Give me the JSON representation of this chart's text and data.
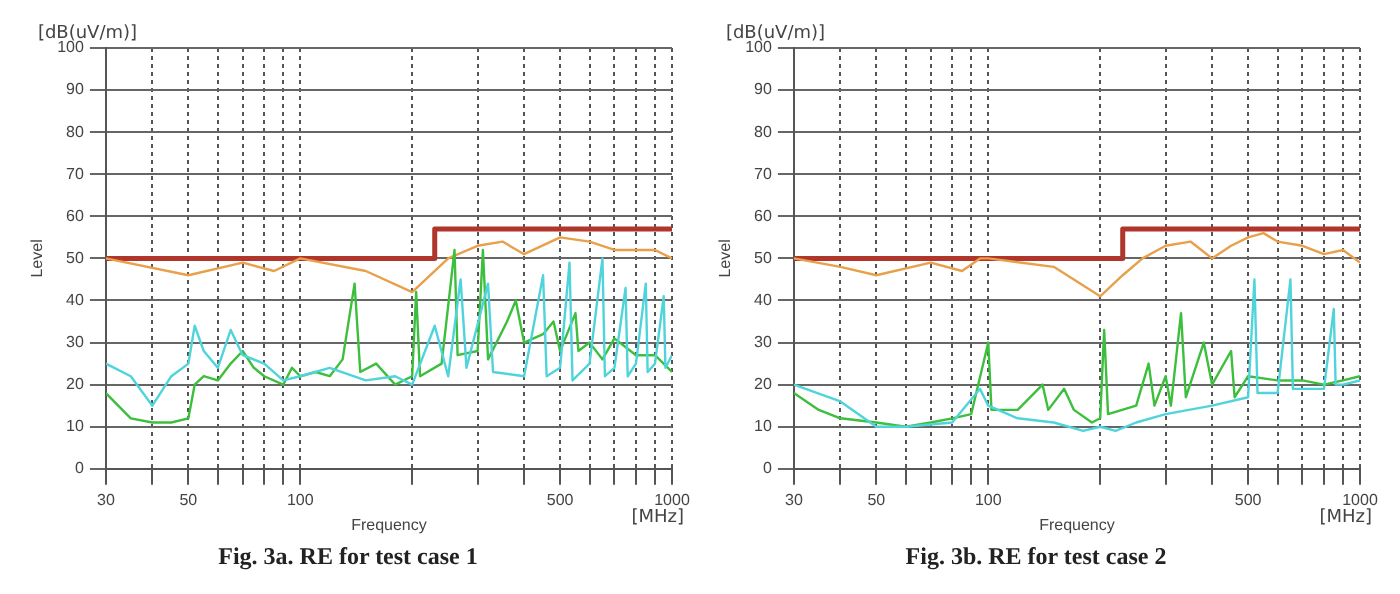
{
  "chart_data": [
    {
      "type": "line",
      "title": "Fig. 3a. RE for test case 1",
      "xlabel": "Frequency",
      "ylabel": "Level",
      "annotations": [
        "[dB(uV/m)]",
        "[MHz]"
      ],
      "log": "x",
      "grid": true,
      "marker": "none",
      "xlim": [
        30,
        1000
      ],
      "xticks": [
        30,
        {
          "value": 40,
          "label": null
        },
        50,
        {
          "value": 60,
          "label": null
        },
        {
          "value": 70,
          "label": null
        },
        {
          "value": 80,
          "label": null
        },
        {
          "value": 90,
          "label": null
        },
        100,
        {
          "value": 200,
          "label": null
        },
        {
          "value": 300,
          "label": null
        },
        {
          "value": 400,
          "label": null
        },
        500,
        {
          "value": 600,
          "label": null
        },
        {
          "value": 700,
          "label": null
        },
        {
          "value": 800,
          "label": null
        },
        {
          "value": 900,
          "label": null
        },
        1000
      ],
      "ylim": [
        0,
        100
      ],
      "yticks": [
        0,
        10,
        20,
        30,
        40,
        50,
        60,
        70,
        80,
        90,
        100
      ],
      "series": [
        {
          "type": "line",
          "color": "#4fd4dc",
          "x": [
            30,
            35,
            40,
            45,
            50,
            52,
            55,
            60,
            65,
            70,
            80,
            90,
            100,
            120,
            150,
            180,
            200,
            230,
            250,
            270,
            280,
            320,
            330,
            400,
            450,
            460,
            500,
            530,
            540,
            600,
            650,
            660,
            700,
            750,
            760,
            800,
            850,
            860,
            900,
            950,
            960,
            1000
          ],
          "values": [
            25,
            22,
            15,
            22,
            25,
            34,
            28,
            24,
            33,
            27,
            25,
            21,
            22,
            24,
            21,
            22,
            20,
            34,
            22,
            45,
            24,
            44,
            23,
            22,
            46,
            22,
            24,
            49,
            21,
            25,
            50,
            22,
            24,
            43,
            22,
            25,
            44,
            23,
            25,
            41,
            24,
            27
          ]
        },
        {
          "type": "line",
          "color": "#3cbf3c",
          "x": [
            30,
            35,
            40,
            45,
            50,
            52,
            55,
            60,
            65,
            70,
            75,
            80,
            90,
            95,
            100,
            110,
            120,
            130,
            140,
            145,
            160,
            180,
            200,
            205,
            210,
            240,
            260,
            265,
            300,
            310,
            320,
            360,
            380,
            400,
            450,
            480,
            500,
            550,
            560,
            600,
            650,
            700,
            800,
            900,
            1000
          ],
          "values": [
            18,
            12,
            11,
            11,
            12,
            20,
            22,
            21,
            25,
            28,
            24,
            22,
            20,
            24,
            22,
            23,
            22,
            26,
            44,
            23,
            25,
            20,
            22,
            42,
            22,
            25,
            52,
            27,
            28,
            52,
            26,
            35,
            40,
            30,
            32,
            35,
            28,
            37,
            28,
            30,
            26,
            31,
            27,
            27,
            23
          ]
        },
        {
          "type": "line",
          "color": "#e8a04a",
          "x": [
            30,
            50,
            70,
            85,
            100,
            150,
            200,
            250,
            300,
            350,
            400,
            500,
            600,
            700,
            800,
            900,
            1000
          ],
          "values": [
            50,
            46,
            49,
            47,
            50,
            47,
            42,
            50,
            53,
            54,
            51,
            55,
            54,
            52,
            52,
            52,
            50
          ]
        },
        {
          "type": "step",
          "color": "#b0352a",
          "x": [
            30,
            230,
            1000
          ],
          "values": [
            50,
            57,
            57
          ]
        }
      ]
    },
    {
      "type": "line",
      "title": "Fig. 3b. RE for test case 2",
      "xlabel": "Frequency",
      "ylabel": "Level",
      "annotations": [
        "[dB(uV/m)]",
        "[MHz]"
      ],
      "log": "x",
      "grid": true,
      "marker": "none",
      "xlim": [
        30,
        1000
      ],
      "xticks": [
        30,
        {
          "value": 40,
          "label": null
        },
        50,
        {
          "value": 60,
          "label": null
        },
        {
          "value": 70,
          "label": null
        },
        {
          "value": 80,
          "label": null
        },
        {
          "value": 90,
          "label": null
        },
        100,
        {
          "value": 200,
          "label": null
        },
        {
          "value": 300,
          "label": null
        },
        {
          "value": 400,
          "label": null
        },
        500,
        {
          "value": 600,
          "label": null
        },
        {
          "value": 700,
          "label": null
        },
        {
          "value": 800,
          "label": null
        },
        {
          "value": 900,
          "label": null
        },
        1000
      ],
      "ylim": [
        0,
        100
      ],
      "yticks": [
        0,
        10,
        20,
        30,
        40,
        50,
        60,
        70,
        80,
        90,
        100
      ],
      "series": [
        {
          "type": "line",
          "color": "#4fd4dc",
          "x": [
            30,
            40,
            50,
            60,
            80,
            95,
            100,
            120,
            150,
            180,
            200,
            220,
            250,
            300,
            400,
            500,
            520,
            530,
            600,
            650,
            660,
            700,
            800,
            850,
            860,
            900,
            1000
          ],
          "values": [
            20,
            16,
            10,
            10,
            11,
            19,
            15,
            12,
            11,
            9,
            10,
            9,
            11,
            13,
            15,
            17,
            45,
            18,
            18,
            45,
            19,
            19,
            19,
            38,
            20,
            20,
            21
          ]
        },
        {
          "type": "line",
          "color": "#3cbf3c",
          "x": [
            30,
            35,
            40,
            50,
            60,
            70,
            80,
            90,
            100,
            102,
            120,
            140,
            145,
            160,
            170,
            190,
            200,
            205,
            210,
            250,
            270,
            280,
            300,
            310,
            330,
            340,
            380,
            400,
            450,
            460,
            500,
            600,
            700,
            800,
            900,
            1000
          ],
          "values": [
            18,
            14,
            12,
            11,
            10,
            11,
            12,
            13,
            30,
            14,
            14,
            20,
            14,
            19,
            14,
            11,
            12,
            33,
            13,
            15,
            25,
            15,
            22,
            15,
            37,
            17,
            30,
            20,
            28,
            17,
            22,
            21,
            21,
            20,
            21,
            22
          ]
        },
        {
          "type": "line",
          "color": "#e8a04a",
          "x": [
            30,
            40,
            50,
            70,
            85,
            95,
            100,
            150,
            200,
            230,
            260,
            300,
            350,
            400,
            450,
            500,
            550,
            600,
            700,
            800,
            900,
            1000
          ],
          "values": [
            50,
            48,
            46,
            49,
            47,
            50,
            50,
            48,
            41,
            46,
            50,
            53,
            54,
            50,
            53,
            55,
            56,
            54,
            53,
            51,
            52,
            49
          ]
        },
        {
          "type": "step",
          "color": "#b0352a",
          "x": [
            30,
            230,
            1000
          ],
          "values": [
            50,
            57,
            57
          ]
        }
      ]
    }
  ]
}
